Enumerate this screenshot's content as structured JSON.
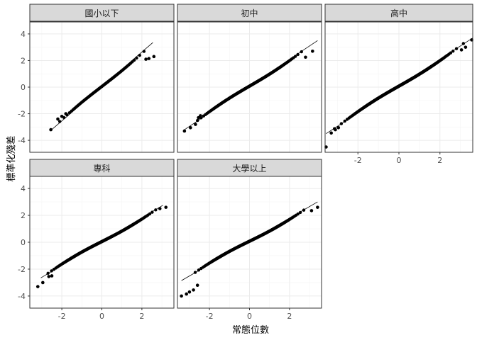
{
  "chart_data": {
    "type": "scatter",
    "kind": "qq-plot facets",
    "xlabel": "常態位數",
    "ylabel": "標準化殘差",
    "xlim": [
      -3.6,
      3.6
    ],
    "ylim": [
      -4.9,
      4.9
    ],
    "x_ticks": [
      -2,
      0,
      2
    ],
    "y_ticks": [
      -4,
      -2,
      0,
      2,
      4
    ],
    "grid": true,
    "shared_axes": true,
    "panels": [
      {
        "title": "國小以下",
        "ref_line": {
          "x": [
            -2.55,
            2.55
          ],
          "y": [
            -3.25,
            3.35
          ]
        },
        "points": {
          "x_range": [
            -2.55,
            2.6
          ],
          "n": 85,
          "tails": [
            [
              -2.55,
              -3.2
            ],
            [
              -2.2,
              -2.4
            ],
            [
              -2.0,
              -2.2
            ],
            [
              -1.8,
              -2.0
            ],
            [
              2.6,
              2.3
            ],
            [
              2.35,
              2.15
            ],
            [
              2.2,
              2.1
            ]
          ]
        }
      },
      {
        "title": "初中",
        "ref_line": {
          "x": [
            -3.3,
            3.4
          ],
          "y": [
            -3.25,
            3.5
          ]
        },
        "points": {
          "x_range": [
            -3.25,
            3.15
          ],
          "n": 320,
          "tails": [
            [
              -3.25,
              -3.3
            ],
            [
              -2.95,
              -3.05
            ],
            [
              -2.7,
              -2.8
            ],
            [
              -2.55,
              -2.3
            ],
            [
              -2.45,
              -2.15
            ],
            [
              3.15,
              2.7
            ],
            [
              2.8,
              2.25
            ]
          ]
        }
      },
      {
        "title": "高中",
        "ref_line": {
          "x": [
            -3.55,
            3.6
          ],
          "y": [
            -3.5,
            3.7
          ]
        },
        "points": {
          "x_range": [
            -3.55,
            3.55
          ],
          "n": 600,
          "tails": [
            [
              -3.55,
              -4.5
            ],
            [
              -3.3,
              -3.45
            ],
            [
              -3.1,
              -3.2
            ],
            [
              -2.95,
              -3.05
            ],
            [
              3.55,
              3.55
            ],
            [
              3.25,
              3.0
            ],
            [
              3.05,
              2.8
            ]
          ]
        }
      },
      {
        "title": "專科",
        "ref_line": {
          "x": [
            -3.05,
            3.05
          ],
          "y": [
            -2.65,
            2.75
          ]
        },
        "points": {
          "x_range": [
            -3.2,
            3.2
          ],
          "n": 420,
          "tails": [
            [
              -3.2,
              -3.3
            ],
            [
              -2.95,
              -3.0
            ],
            [
              -2.65,
              -2.55
            ],
            [
              -2.5,
              -2.5
            ],
            [
              3.2,
              2.6
            ],
            [
              2.9,
              2.5
            ]
          ]
        }
      },
      {
        "title": "大學以上",
        "ref_line": {
          "x": [
            -3.4,
            3.4
          ],
          "y": [
            -2.85,
            3.0
          ]
        },
        "points": {
          "x_range": [
            -3.4,
            3.4
          ],
          "n": 450,
          "tails": [
            [
              -3.4,
              -4.0
            ],
            [
              -3.15,
              -3.85
            ],
            [
              -3.0,
              -3.7
            ],
            [
              -2.8,
              -3.55
            ],
            [
              -2.6,
              -3.2
            ],
            [
              3.4,
              2.6
            ],
            [
              3.1,
              2.35
            ]
          ]
        }
      }
    ]
  }
}
